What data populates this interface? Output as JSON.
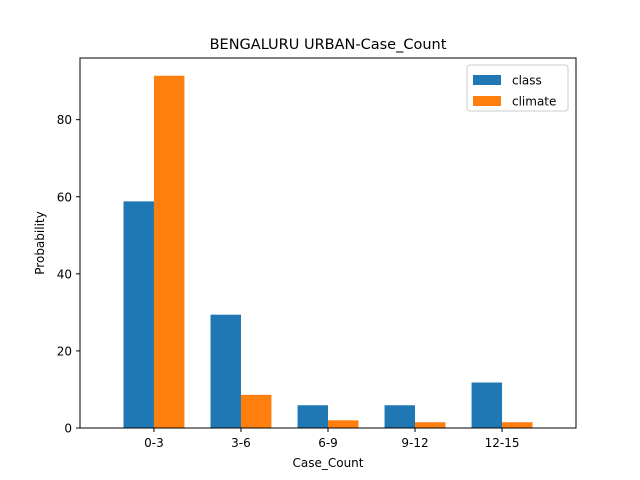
{
  "chart_data": {
    "type": "bar",
    "title": "BENGALURU URBAN-Case_Count",
    "xlabel": "Case_Count",
    "ylabel": "Probability",
    "categories": [
      "0-3",
      "3-6",
      "6-9",
      "9-12",
      "12-15"
    ],
    "series": [
      {
        "name": "class",
        "color": "#1f77b4",
        "values": [
          58.8,
          29.4,
          5.9,
          5.9,
          11.8
        ]
      },
      {
        "name": "climate",
        "color": "#ff7f0e",
        "values": [
          91.4,
          8.6,
          2.0,
          1.5,
          1.5
        ]
      }
    ],
    "ylim": [
      0,
      96
    ],
    "yticks": [
      0,
      20,
      40,
      60,
      80
    ],
    "grid": false,
    "legend_position": "top-right"
  }
}
